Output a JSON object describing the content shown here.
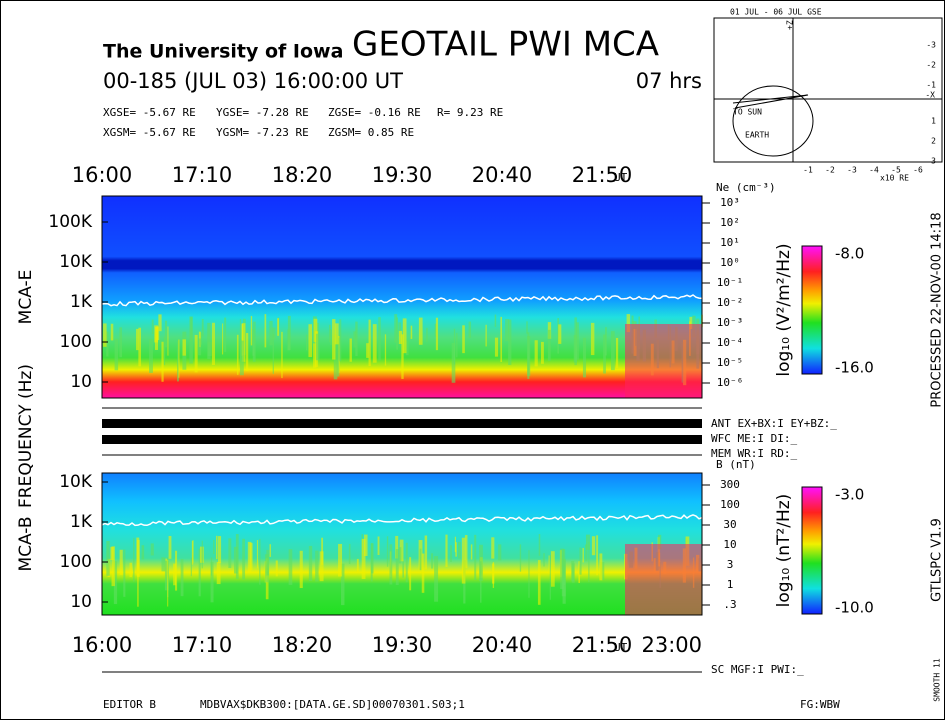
{
  "header": {
    "institution": "The University of Iowa",
    "title": "GEOTAIL PWI MCA",
    "date": "00-185 (JUL 03) 16:00:00 UT",
    "duration": "07 hrs",
    "coords": [
      [
        "XGSE=  -5.67 RE",
        "YGSE=  -7.28 RE",
        "ZGSE=  -0.16 RE",
        "R=  9.23 RE"
      ],
      [
        "XGSM=  -5.67 RE",
        "YGSM=  -7.23 RE",
        "ZGSM=   0.85 RE"
      ]
    ]
  },
  "orbit": {
    "title": "01 JUL - 06 JUL GSE",
    "x_label": "-X",
    "z_label": "+Z",
    "unit": "x10 RE",
    "to_sun": "TO SUN",
    "earth": "EARTH",
    "xticks": [
      "-1",
      "-2",
      "-3",
      "-4",
      "-5",
      "-6"
    ],
    "yticks": [
      "-3",
      "-2",
      "-1",
      "1",
      "2",
      "3"
    ]
  },
  "time_axis": {
    "top": [
      "16:00",
      "17:10",
      "18:20",
      "19:30",
      "20:40",
      "21:50"
    ],
    "unit": "UT",
    "bottom": [
      "16:00",
      "17:10",
      "18:20",
      "19:30",
      "20:40",
      "21:50"
    ],
    "end": "23:00"
  },
  "frequency_label": "FREQUENCY (Hz)",
  "mca_e": {
    "label": "MCA-E",
    "freq_ticks": [
      "100K",
      "10K",
      "1K",
      "100",
      "10"
    ],
    "right_label": "Ne (cm⁻³)",
    "right_ticks": [
      "10³",
      "10²",
      "10¹",
      "10⁰",
      "10⁻¹",
      "10⁻²",
      "10⁻³",
      "10⁻⁴",
      "10⁻⁵",
      "10⁻⁶"
    ],
    "colorbar_label": "log₁₀ (V²/m²/Hz)",
    "colorbar_max": "-8.0",
    "colorbar_min": "-16.0"
  },
  "status": [
    "ANT EX+BX:I  EY+BZ:_",
    "WFC ME:I     DI:_",
    "MEM WR:I     RD:_"
  ],
  "mca_b": {
    "label": "MCA-B",
    "freq_ticks": [
      "10K",
      "1K",
      "100",
      "10"
    ],
    "right_label": "B (nT)",
    "right_ticks": [
      "300",
      "100",
      "30",
      "10",
      "3",
      "1",
      ".3"
    ],
    "colorbar_label": "log₁₀ (nT²/Hz)",
    "colorbar_max": "-3.0",
    "colorbar_min": "-10.0"
  },
  "footer": {
    "sc": "SC MGF:I    PWI:_",
    "editor": "EDITOR B",
    "file": "MDBVAX$DKB300:[DATA.GE.SD]00070301.S03;1",
    "fg": "FG:WBW"
  },
  "side": {
    "processed": "PROCESSED 22-NOV-00  14:18",
    "version": "GTLSPC  V1.9",
    "smooth": "SMOOTH 11"
  }
}
